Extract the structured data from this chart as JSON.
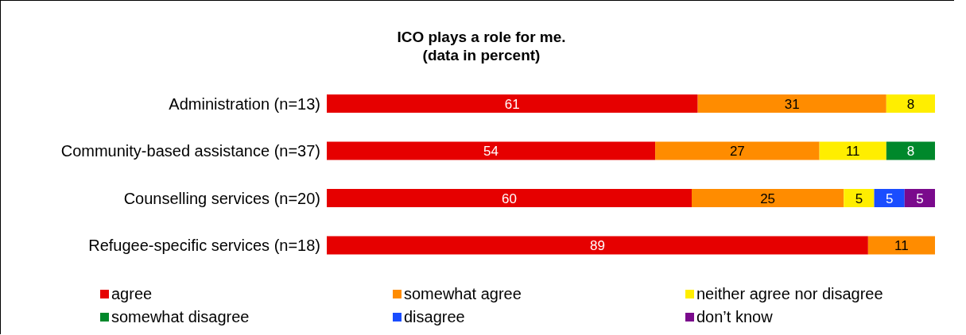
{
  "chart_data": {
    "type": "bar",
    "orientation": "horizontal",
    "stacked": true,
    "title": "ICO plays a role for me.\n(data in percent)",
    "categories": [
      "Administration (n=13)",
      "Community-based assistance (n=37)",
      "Counselling services (n=20)",
      "Refugee-specific services (n=18)"
    ],
    "series": [
      {
        "name": "agree",
        "color": "#e60000",
        "values": [
          61,
          54,
          60,
          89
        ]
      },
      {
        "name": "somewhat agree",
        "color": "#ff8c00",
        "values": [
          31,
          27,
          25,
          11
        ]
      },
      {
        "name": "neither agree nor disagree",
        "color": "#ffee00",
        "values": [
          8,
          11,
          5,
          null
        ]
      },
      {
        "name": "somewhat disagree",
        "color": "#00882b",
        "values": [
          null,
          8,
          null,
          null
        ]
      },
      {
        "name": "disagree",
        "color": "#1a4dff",
        "values": [
          null,
          null,
          5,
          null
        ]
      },
      {
        "name": "don’t know",
        "color": "#7a0a8c",
        "values": [
          null,
          null,
          5,
          null
        ]
      }
    ],
    "data_labels": true,
    "legend": "bottom",
    "grid": false
  }
}
